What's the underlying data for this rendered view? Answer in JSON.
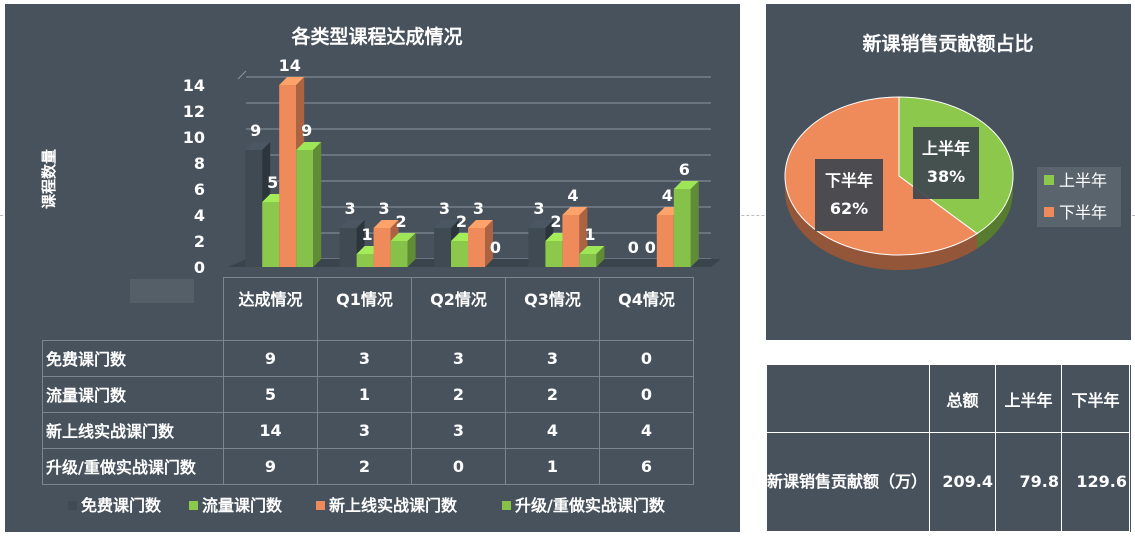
{
  "chart_data": [
    {
      "type": "bar",
      "title": "各类型课程达成情况",
      "ylabel": "课程数量",
      "ylim": [
        0,
        14
      ],
      "yticks": [
        0,
        2,
        4,
        6,
        8,
        10,
        12,
        14
      ],
      "categories": [
        "达成情况",
        "Q1情况",
        "Q2情况",
        "Q3情况",
        "Q4情况"
      ],
      "series": [
        {
          "name": "免费课门数",
          "color": "#3f4a53",
          "values": [
            9,
            3,
            3,
            3,
            0
          ]
        },
        {
          "name": "流量课门数",
          "color": "#8cc84b",
          "values": [
            5,
            1,
            2,
            2,
            0
          ]
        },
        {
          "name": "新上线实战课门数",
          "color": "#ef8a5a",
          "values": [
            14,
            3,
            3,
            4,
            4
          ]
        },
        {
          "name": "升级/重做实战课门数",
          "color": "#86c24a",
          "values": [
            9,
            2,
            0,
            1,
            6
          ]
        }
      ],
      "legend": "bottom",
      "data_table": true
    },
    {
      "type": "pie",
      "title": "新课销售贡献额占比",
      "labels": [
        "上半年",
        "下半年"
      ],
      "values": [
        38,
        62
      ],
      "value_labels": [
        "38%",
        "62%"
      ],
      "colors": [
        "#8cc84b",
        "#ef8a5a"
      ],
      "legend": "right"
    },
    {
      "type": "table",
      "headers": [
        "",
        "总额",
        "上半年",
        "下半年"
      ],
      "rows": [
        [
          "新课销售贡献额（万）",
          "209.4",
          "79.8",
          "129.6"
        ]
      ]
    }
  ]
}
